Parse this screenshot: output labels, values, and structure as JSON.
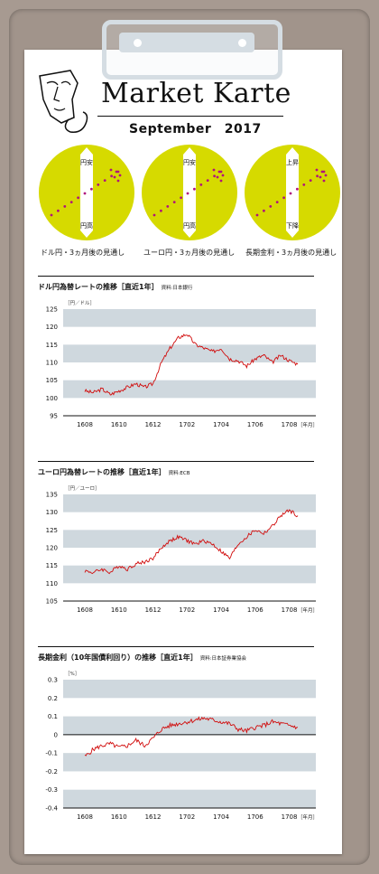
{
  "header": {
    "title": "Market Karte",
    "date": "September　2017"
  },
  "colors": {
    "circle": "#d6da00",
    "dots": "#b0137c",
    "line": "#d10b0b",
    "band": "#cfd8de"
  },
  "outlook": [
    {
      "label": "ドル円・3ヵ月後の見通し",
      "top": "円安",
      "bottom": "円高"
    },
    {
      "label": "ユーロ円・3ヵ月後の見通し",
      "top": "円安",
      "bottom": "円高"
    },
    {
      "label": "長期金利・3ヵ月後の見通し",
      "top": "上昇",
      "bottom": "下降"
    }
  ],
  "sections": [
    {
      "title": "ドル円為替レートの推移［直近1年］",
      "source": "資料:日本銀行"
    },
    {
      "title": "ユーロ円為替レートの推移［直近1年］",
      "source": "資料:ECB"
    },
    {
      "title": "長期金利（10年国債利回り）の推移［直近1年］",
      "source": "資料:日本証券業協会"
    }
  ],
  "chart_data": [
    {
      "type": "line",
      "unit": "［円／ドル］",
      "x_suffix": "［年月］",
      "ylim": [
        95,
        125
      ],
      "yticks": [
        95,
        100,
        105,
        110,
        115,
        120,
        125
      ],
      "categories": [
        "1608",
        "1610",
        "1612",
        "1702",
        "1704",
        "1706",
        "1708"
      ],
      "x": [
        0,
        0.5,
        1,
        1.5,
        2,
        2.5,
        3,
        3.5,
        4,
        4.5,
        5,
        5.5,
        6,
        6.5,
        7,
        7.5,
        8,
        8.5,
        9,
        9.5,
        10,
        10.5,
        11,
        11.5,
        12,
        12.5
      ],
      "values": [
        102,
        101.5,
        102.5,
        101,
        102,
        103,
        104,
        103,
        104,
        110,
        114,
        117,
        118,
        115,
        114,
        113,
        114,
        111,
        110.5,
        109,
        111,
        112,
        110,
        112,
        110.5,
        109.5
      ]
    },
    {
      "type": "line",
      "unit": "［円／ユーロ］",
      "x_suffix": "［年月］",
      "ylim": [
        105,
        135
      ],
      "yticks": [
        105,
        110,
        115,
        120,
        125,
        130,
        135
      ],
      "categories": [
        "1608",
        "1610",
        "1612",
        "1702",
        "1704",
        "1706",
        "1708"
      ],
      "x": [
        0,
        0.5,
        1,
        1.5,
        2,
        2.5,
        3,
        3.5,
        4,
        4.5,
        5,
        5.5,
        6,
        6.5,
        7,
        7.5,
        8,
        8.5,
        9,
        9.5,
        10,
        10.5,
        11,
        11.5,
        12,
        12.5
      ],
      "values": [
        113.5,
        113,
        114,
        113,
        115,
        114,
        115.5,
        116,
        117,
        120,
        122,
        123,
        122,
        121,
        122,
        121,
        119,
        117,
        121,
        123,
        125,
        124,
        126,
        129,
        130.5,
        129
      ]
    },
    {
      "type": "line",
      "unit": "［%］",
      "x_suffix": "［年月］",
      "ylim": [
        -0.4,
        0.3
      ],
      "yticks": [
        0.3,
        0.2,
        0.1,
        0,
        -0.1,
        -0.2,
        -0.3,
        -0.4
      ],
      "categories": [
        "1608",
        "1610",
        "1612",
        "1702",
        "1704",
        "1706",
        "1708"
      ],
      "x": [
        0,
        0.5,
        1,
        1.5,
        2,
        2.5,
        3,
        3.5,
        4,
        4.5,
        5,
        5.5,
        6,
        6.5,
        7,
        7.5,
        8,
        8.5,
        9,
        9.5,
        10,
        10.5,
        11,
        11.5,
        12,
        12.5
      ],
      "values": [
        -0.12,
        -0.08,
        -0.06,
        -0.05,
        -0.07,
        -0.06,
        -0.03,
        -0.06,
        -0.02,
        0.03,
        0.05,
        0.06,
        0.07,
        0.08,
        0.09,
        0.08,
        0.07,
        0.06,
        0.03,
        0.02,
        0.04,
        0.05,
        0.07,
        0.06,
        0.05,
        0.04
      ]
    }
  ]
}
